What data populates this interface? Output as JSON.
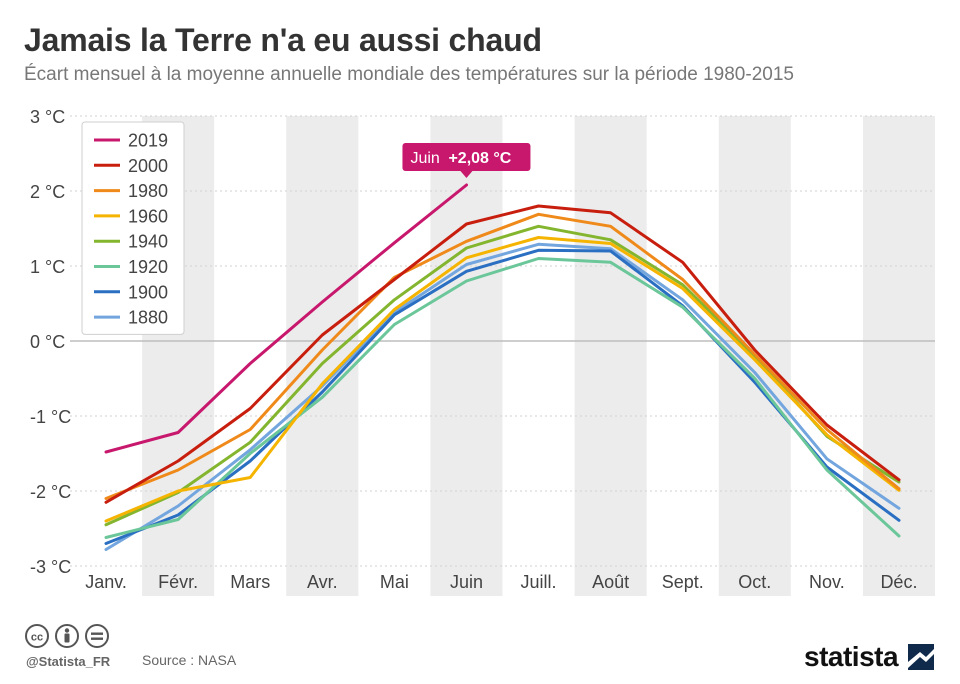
{
  "header": {
    "title": "Jamais la Terre n'a eu aussi chaud",
    "subtitle": "Écart mensuel à la moyenne annuelle mondiale des températures sur la période 1980-2015"
  },
  "footer": {
    "handle": "@Statista_FR",
    "source": "Source : NASA",
    "brand": "statista",
    "icons": [
      "cc-icon",
      "person-icon",
      "equal-icon"
    ]
  },
  "colors": {
    "2019": "#c8186d",
    "2000": "#c81e0e",
    "1980": "#ef8a1a",
    "1960": "#f5b400",
    "1940": "#84b52e",
    "1920": "#6bc79a",
    "1900": "#2a6fc2",
    "1880": "#73a5de",
    "callout": "#c8186d",
    "band": "#ececec"
  },
  "chart_data": {
    "type": "line",
    "title": "Jamais la Terre n'a eu aussi chaud",
    "subtitle": "Écart mensuel à la moyenne annuelle mondiale des températures sur la période 1980-2015",
    "categories": [
      "Janv.",
      "Févr.",
      "Mars",
      "Avr.",
      "Mai",
      "Juin",
      "Juill.",
      "Août",
      "Sept.",
      "Oct.",
      "Nov.",
      "Déc."
    ],
    "y_ticks": [
      3,
      2,
      1,
      0,
      -1,
      -2,
      -3
    ],
    "y_tick_labels": [
      "3 °C",
      "2 °C",
      "1 °C",
      "0 °C",
      "-1 °C",
      "-2 °C",
      "-3 °C"
    ],
    "ylim": [
      -3,
      3
    ],
    "legend_position": "top-left",
    "grid": true,
    "annotation": {
      "label": "Juin",
      "value_label": "+2,08 °C",
      "series": "2019",
      "category": "Juin",
      "value": 2.08
    },
    "series": [
      {
        "name": "2019",
        "values": [
          -1.48,
          -1.22,
          -0.3,
          0.52,
          1.31,
          2.08,
          null,
          null,
          null,
          null,
          null,
          null
        ]
      },
      {
        "name": "2000",
        "values": [
          -2.15,
          -1.6,
          -0.9,
          0.08,
          0.82,
          1.56,
          1.8,
          1.71,
          1.05,
          -0.12,
          -1.12,
          -1.85
        ]
      },
      {
        "name": "1980",
        "values": [
          -2.1,
          -1.72,
          -1.18,
          -0.12,
          0.85,
          1.33,
          1.69,
          1.53,
          0.82,
          -0.18,
          -1.18,
          -1.97
        ]
      },
      {
        "name": "1960",
        "values": [
          -2.4,
          -2.0,
          -1.82,
          -0.57,
          0.42,
          1.11,
          1.38,
          1.3,
          0.7,
          -0.25,
          -1.25,
          -1.99
        ]
      },
      {
        "name": "1940",
        "values": [
          -2.45,
          -2.02,
          -1.35,
          -0.3,
          0.55,
          1.24,
          1.53,
          1.35,
          0.75,
          -0.2,
          -1.27,
          -1.88
        ]
      },
      {
        "name": "1920",
        "values": [
          -2.62,
          -2.38,
          -1.5,
          -0.75,
          0.22,
          0.8,
          1.1,
          1.05,
          0.45,
          -0.5,
          -1.72,
          -2.6
        ]
      },
      {
        "name": "1900",
        "values": [
          -2.7,
          -2.32,
          -1.6,
          -0.68,
          0.35,
          0.93,
          1.21,
          1.2,
          0.47,
          -0.55,
          -1.68,
          -2.39
        ]
      },
      {
        "name": "1880",
        "values": [
          -2.78,
          -2.2,
          -1.45,
          -0.6,
          0.38,
          1.02,
          1.29,
          1.23,
          0.55,
          -0.42,
          -1.57,
          -2.23
        ]
      }
    ]
  }
}
